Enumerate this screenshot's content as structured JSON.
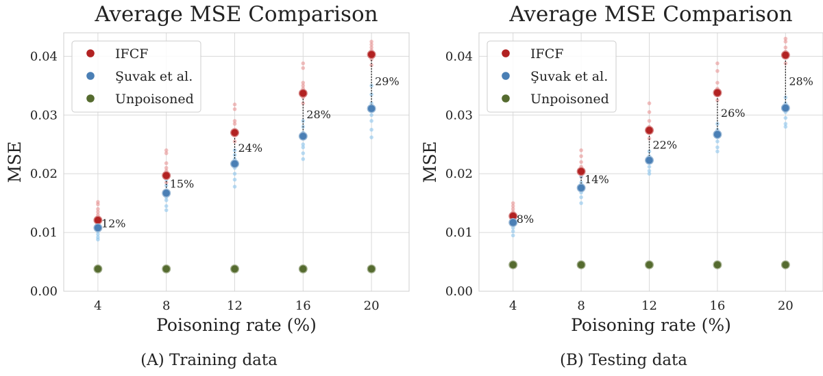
{
  "chart_data": [
    {
      "type": "scatter",
      "title": "Average MSE Comparison",
      "xlabel": "Poisoning rate (%)",
      "ylabel": "MSE",
      "caption": "(A) Training data",
      "x": [
        4,
        8,
        12,
        16,
        20
      ],
      "xticks": [
        "4",
        "8",
        "12",
        "16",
        "20"
      ],
      "ylim": [
        0,
        0.044
      ],
      "yticks": [
        "0.00",
        "0.01",
        "0.02",
        "0.03",
        "0.04"
      ],
      "grid": true,
      "legend_position": "top-left",
      "series": [
        {
          "name": "IFCF",
          "color": "#b22222",
          "values": [
            0.0121,
            0.0197,
            0.027,
            0.0337,
            0.0403
          ],
          "runs": [
            [
              0.0112,
              0.0125,
              0.013,
              0.0135,
              0.014,
              0.0148,
              0.0152
            ],
            [
              0.0185,
              0.02,
              0.0205,
              0.021,
              0.0218,
              0.0235,
              0.024
            ],
            [
              0.0255,
              0.0265,
              0.0275,
              0.0285,
              0.029,
              0.031,
              0.0318
            ],
            [
              0.032,
              0.033,
              0.0345,
              0.035,
              0.0355,
              0.038,
              0.0388
            ],
            [
              0.0385,
              0.0395,
              0.0405,
              0.041,
              0.0415,
              0.042,
              0.0425
            ]
          ]
        },
        {
          "name": "Şuvak et al.",
          "color": "#4a7fb5",
          "values": [
            0.0108,
            0.0167,
            0.0217,
            0.0264,
            0.0311
          ],
          "runs": [
            [
              0.0088,
              0.0092,
              0.0097,
              0.0102,
              0.0112,
              0.0118,
              0.0125
            ],
            [
              0.0138,
              0.0145,
              0.0155,
              0.016,
              0.0172,
              0.018,
              0.019
            ],
            [
              0.0178,
              0.019,
              0.02,
              0.021,
              0.0225,
              0.0232,
              0.024
            ],
            [
              0.0225,
              0.0235,
              0.0245,
              0.025,
              0.027,
              0.028,
              0.029
            ],
            [
              0.0262,
              0.0275,
              0.029,
              0.03,
              0.032,
              0.0335,
              0.035
            ]
          ]
        },
        {
          "name": "Unpoisoned",
          "color": "#556b2f",
          "values": [
            0.0038,
            0.0038,
            0.0038,
            0.0038,
            0.0038
          ]
        }
      ],
      "annotations": [
        "12%",
        "15%",
        "24%",
        "28%",
        "29%"
      ]
    },
    {
      "type": "scatter",
      "title": "Average MSE Comparison",
      "xlabel": "Poisoning rate (%)",
      "ylabel": "MSE",
      "caption": "(B) Testing data",
      "x": [
        4,
        8,
        12,
        16,
        20
      ],
      "xticks": [
        "4",
        "8",
        "12",
        "16",
        "20"
      ],
      "ylim": [
        0,
        0.044
      ],
      "yticks": [
        "0.00",
        "0.01",
        "0.02",
        "0.03",
        "0.04"
      ],
      "grid": true,
      "legend_position": "top-left",
      "series": [
        {
          "name": "IFCF",
          "color": "#b22222",
          "values": [
            0.0128,
            0.0204,
            0.0274,
            0.0338,
            0.0402
          ],
          "runs": [
            [
              0.012,
              0.013,
              0.0135,
              0.014,
              0.0145,
              0.015
            ],
            [
              0.0195,
              0.0205,
              0.0212,
              0.022,
              0.023,
              0.024
            ],
            [
              0.026,
              0.027,
              0.028,
              0.029,
              0.0305,
              0.032
            ],
            [
              0.0325,
              0.0335,
              0.0345,
              0.0355,
              0.0375,
              0.0388
            ],
            [
              0.0388,
              0.0398,
              0.0408,
              0.0415,
              0.0425,
              0.043
            ]
          ]
        },
        {
          "name": "Şuvak et al.",
          "color": "#4a7fb5",
          "values": [
            0.0117,
            0.0176,
            0.0223,
            0.0267,
            0.0312
          ],
          "runs": [
            [
              0.0095,
              0.0102,
              0.0108,
              0.0113,
              0.0122,
              0.0128
            ],
            [
              0.015,
              0.016,
              0.0168,
              0.0175,
              0.0185,
              0.0195
            ],
            [
              0.02,
              0.0205,
              0.0212,
              0.022,
              0.023,
              0.0238
            ],
            [
              0.0238,
              0.0245,
              0.0255,
              0.0262,
              0.0275,
              0.0285
            ],
            [
              0.028,
              0.0285,
              0.0295,
              0.0305,
              0.032,
              0.033
            ]
          ]
        },
        {
          "name": "Unpoisoned",
          "color": "#556b2f",
          "values": [
            0.0045,
            0.0045,
            0.0045,
            0.0045,
            0.0045
          ]
        }
      ],
      "annotations": [
        "8%",
        "14%",
        "22%",
        "26%",
        "28%"
      ]
    }
  ]
}
